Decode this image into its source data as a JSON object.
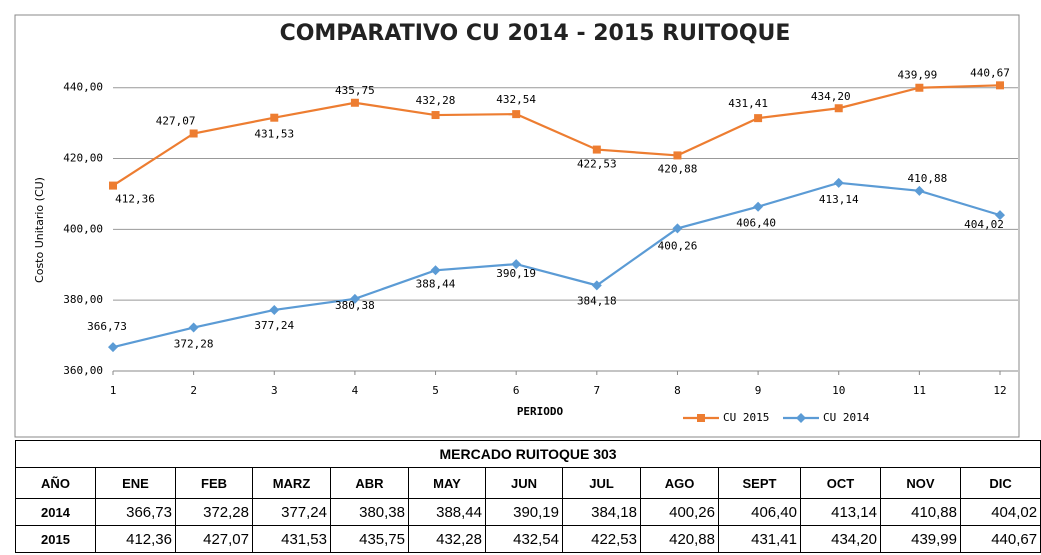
{
  "chart_data": {
    "type": "line",
    "title": "COMPARATIVO CU  2014 - 2015  RUITOQUE",
    "y_label": "Costo Unitario  (CU)",
    "x_label": "PERIODO",
    "categories": [
      "1",
      "2",
      "3",
      "4",
      "5",
      "6",
      "7",
      "8",
      "9",
      "10",
      "11",
      "12"
    ],
    "series": [
      {
        "name": "CU 2015",
        "color": "#ed7d31",
        "marker": "square",
        "values": [
          412.36,
          427.07,
          431.53,
          435.75,
          432.28,
          432.54,
          422.53,
          420.88,
          431.41,
          434.2,
          439.99,
          440.67
        ],
        "value_labels": [
          "412,36",
          "427,07",
          "431,53",
          "435,75",
          "432,28",
          "432,54",
          "422,53",
          "420,88",
          "431,41",
          "434,20",
          "439,99",
          "440,67"
        ]
      },
      {
        "name": "CU 2014",
        "color": "#5b9bd5",
        "marker": "diamond",
        "values": [
          366.73,
          372.28,
          377.24,
          380.38,
          388.44,
          390.19,
          384.18,
          400.26,
          406.4,
          413.14,
          410.88,
          404.02
        ],
        "value_labels": [
          "366,73",
          "372,28",
          "377,24",
          "380,38",
          "388,44",
          "390,19",
          "384,18",
          "400,26",
          "406,40",
          "413,14",
          "410,88",
          "404,02"
        ]
      }
    ],
    "ylim": [
      360,
      445
    ],
    "yticks": [
      {
        "value": 360,
        "label": "360,00"
      },
      {
        "value": 380,
        "label": "380,00"
      },
      {
        "value": 400,
        "label": "400,00"
      },
      {
        "value": 420,
        "label": "420,00"
      },
      {
        "value": 440,
        "label": "440,00"
      }
    ],
    "grid": true,
    "legend": "bottom-right"
  },
  "table": {
    "title": "MERCADO RUITOQUE 303",
    "header": [
      "AÑO",
      "ENE",
      "FEB",
      "MARZ",
      "ABR",
      "MAY",
      "JUN",
      "JUL",
      "AGO",
      "SEPT",
      "OCT",
      "NOV",
      "DIC"
    ],
    "rows": [
      [
        "2014",
        "366,73",
        "372,28",
        "377,24",
        "380,38",
        "388,44",
        "390,19",
        "384,18",
        "400,26",
        "406,40",
        "413,14",
        "410,88",
        "404,02"
      ],
      [
        "2015",
        "412,36",
        "427,07",
        "431,53",
        "435,75",
        "432,28",
        "432,54",
        "422,53",
        "420,88",
        "431,41",
        "434,20",
        "439,99",
        "440,67"
      ]
    ]
  }
}
